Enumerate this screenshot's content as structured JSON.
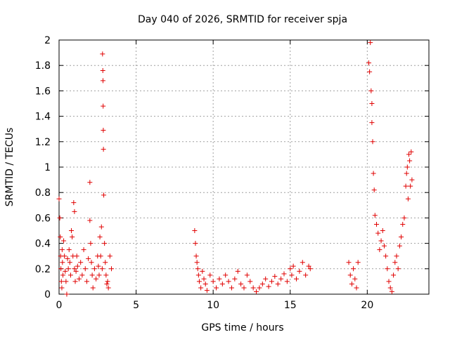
{
  "chart_data": {
    "type": "scatter",
    "title": "Day 040 of 2026, SRMTID for receiver spja",
    "xlabel": "GPS time / hours",
    "ylabel": "SRMTID / TECUs",
    "xlim": [
      0,
      24
    ],
    "ylim": [
      0,
      2
    ],
    "xticks": [
      0,
      5,
      10,
      15,
      20
    ],
    "xtick_labels": [
      "0",
      "5",
      "10",
      "15",
      "20"
    ],
    "yticks": [
      0,
      0.2,
      0.4,
      0.6,
      0.8,
      1,
      1.2,
      1.4,
      1.6,
      1.8,
      2
    ],
    "ytick_labels": [
      "0",
      "0.2",
      "0.4",
      "0.6",
      "0.8",
      "1",
      "1.2",
      "1.4",
      "1.6",
      "1.8",
      "2"
    ],
    "grid": true,
    "marker": "+",
    "series_color": "#e00000",
    "series": [
      {
        "name": "SRMTID",
        "x": [
          0.0,
          0.05,
          0.08,
          0.1,
          0.12,
          0.15,
          0.18,
          0.2,
          0.22,
          0.25,
          0.3,
          0.35,
          0.4,
          0.45,
          0.5,
          0.55,
          0.6,
          0.65,
          0.7,
          0.75,
          0.8,
          0.85,
          0.9,
          0.95,
          1.0,
          1.0,
          1.05,
          1.1,
          1.15,
          1.2,
          1.3,
          1.4,
          1.5,
          1.6,
          1.7,
          1.8,
          1.9,
          2.0,
          2.0,
          2.05,
          2.1,
          2.15,
          2.2,
          2.3,
          2.4,
          2.5,
          2.55,
          2.6,
          2.65,
          2.7,
          2.75,
          2.8,
          2.82,
          2.84,
          2.85,
          2.86,
          2.87,
          2.88,
          2.9,
          2.95,
          3.0,
          3.05,
          3.1,
          3.15,
          3.2,
          3.3,
          3.4,
          8.8,
          8.85,
          8.9,
          8.95,
          9.0,
          9.05,
          9.1,
          9.2,
          9.3,
          9.4,
          9.5,
          9.6,
          9.8,
          10.0,
          10.2,
          10.4,
          10.6,
          10.8,
          11.0,
          11.2,
          11.4,
          11.6,
          11.8,
          12.0,
          12.2,
          12.4,
          12.6,
          12.8,
          13.0,
          13.2,
          13.4,
          13.6,
          13.8,
          14.0,
          14.2,
          14.4,
          14.6,
          14.8,
          15.0,
          15.1,
          15.2,
          15.4,
          15.6,
          15.8,
          16.0,
          16.2,
          16.3,
          18.8,
          18.9,
          19.0,
          19.1,
          19.2,
          19.3,
          19.4,
          20.1,
          20.15,
          20.2,
          20.25,
          20.3,
          20.3,
          20.35,
          20.4,
          20.45,
          20.5,
          20.6,
          20.7,
          20.8,
          20.9,
          21.0,
          21.1,
          21.2,
          21.3,
          21.4,
          21.5,
          21.6,
          21.7,
          21.8,
          21.9,
          22.0,
          22.1,
          22.2,
          22.3,
          22.4,
          22.5,
          22.55,
          22.6,
          22.65,
          22.7,
          22.75,
          22.8,
          22.85,
          22.9
        ],
        "y": [
          0.75,
          0.6,
          0.45,
          0.3,
          0.2,
          0.1,
          0.05,
          0.35,
          0.25,
          0.15,
          0.42,
          0.3,
          0.18,
          0.1,
          0.0,
          0.28,
          0.2,
          0.35,
          0.25,
          0.15,
          0.5,
          0.45,
          0.3,
          0.72,
          0.65,
          0.2,
          0.1,
          0.18,
          0.3,
          0.22,
          0.12,
          0.25,
          0.15,
          0.35,
          0.2,
          0.1,
          0.28,
          0.88,
          0.58,
          0.4,
          0.25,
          0.15,
          0.05,
          0.2,
          0.12,
          0.3,
          0.22,
          0.15,
          0.45,
          0.3,
          0.53,
          0.2,
          1.89,
          1.76,
          1.68,
          1.48,
          1.29,
          1.14,
          0.78,
          0.4,
          0.25,
          0.15,
          0.08,
          0.1,
          0.05,
          0.3,
          0.2,
          0.5,
          0.4,
          0.3,
          0.25,
          0.2,
          0.15,
          0.1,
          0.05,
          0.18,
          0.12,
          0.08,
          0.03,
          0.15,
          0.1,
          0.05,
          0.12,
          0.08,
          0.15,
          0.1,
          0.05,
          0.12,
          0.18,
          0.08,
          0.05,
          0.15,
          0.1,
          0.05,
          0.02,
          0.05,
          0.08,
          0.12,
          0.06,
          0.1,
          0.14,
          0.08,
          0.12,
          0.16,
          0.1,
          0.2,
          0.15,
          0.22,
          0.12,
          0.18,
          0.25,
          0.15,
          0.22,
          0.2,
          0.25,
          0.15,
          0.08,
          0.2,
          0.12,
          0.05,
          0.25,
          1.82,
          1.75,
          1.98,
          1.6,
          1.5,
          1.35,
          1.2,
          0.95,
          0.82,
          0.62,
          0.55,
          0.48,
          0.35,
          0.42,
          0.5,
          0.38,
          0.3,
          0.2,
          0.1,
          0.05,
          0.02,
          0.15,
          0.25,
          0.3,
          0.2,
          0.38,
          0.45,
          0.55,
          0.6,
          0.85,
          0.95,
          1.0,
          0.75,
          1.1,
          1.05,
          0.85,
          1.12,
          0.9
        ]
      }
    ]
  }
}
